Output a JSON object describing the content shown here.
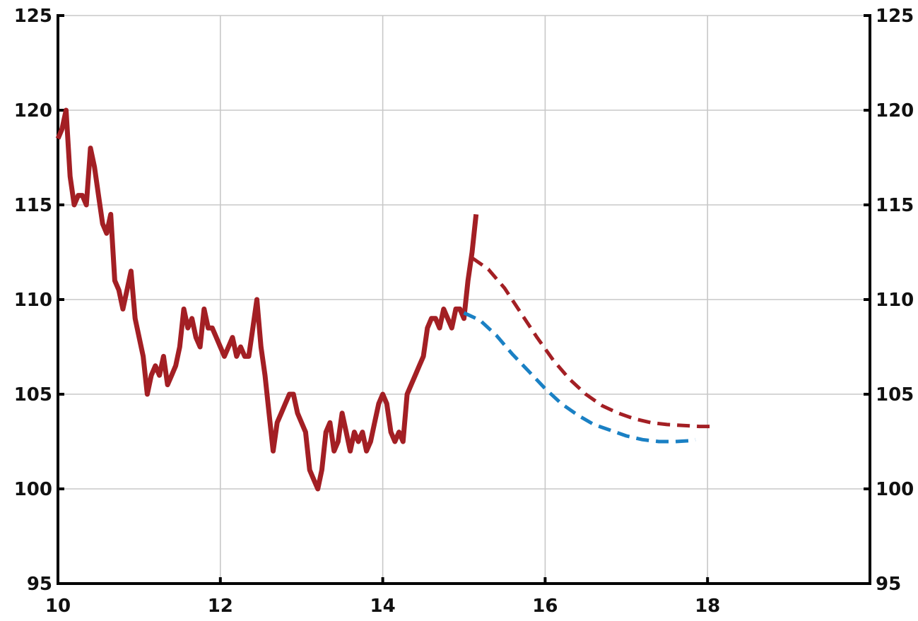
{
  "chart_data": {
    "type": "line",
    "title": "",
    "xlabel": "",
    "ylabel": "",
    "xlim": [
      10,
      20
    ],
    "ylim": [
      95,
      125
    ],
    "x_ticks": [
      10,
      12,
      14,
      16,
      18
    ],
    "y_ticks": [
      95,
      100,
      105,
      110,
      115,
      120,
      125
    ],
    "x_tick_labels": [
      "10",
      "12",
      "14",
      "16",
      "18"
    ],
    "y_tick_labels": [
      "95",
      "100",
      "105",
      "110",
      "115",
      "120",
      "125"
    ],
    "y_axis_right": true,
    "grid": true,
    "legend": "none",
    "series": [
      {
        "color": "#a31f24",
        "style": "solid",
        "x": [
          10.0,
          10.05,
          10.1,
          10.15,
          10.2,
          10.25,
          10.3,
          10.35,
          10.4,
          10.45,
          10.5,
          10.55,
          10.6,
          10.65,
          10.7,
          10.75,
          10.8,
          10.85,
          10.9,
          10.95,
          11.0,
          11.05,
          11.1,
          11.15,
          11.2,
          11.25,
          11.3,
          11.35,
          11.4,
          11.45,
          11.5,
          11.55,
          11.6,
          11.65,
          11.7,
          11.75,
          11.8,
          11.85,
          11.9,
          11.95,
          12.0,
          12.05,
          12.1,
          12.15,
          12.2,
          12.25,
          12.3,
          12.35,
          12.4,
          12.45,
          12.5,
          12.55,
          12.6,
          12.65,
          12.7,
          12.75,
          12.8,
          12.85,
          12.9,
          12.95,
          13.0,
          13.05,
          13.1,
          13.15,
          13.2,
          13.25,
          13.3,
          13.35,
          13.4,
          13.45,
          13.5,
          13.55,
          13.6,
          13.65,
          13.7,
          13.75,
          13.8,
          13.85,
          13.9,
          13.95,
          14.0,
          14.05,
          14.1,
          14.15,
          14.2,
          14.25,
          14.3,
          14.35,
          14.4,
          14.45,
          14.5,
          14.55,
          14.6,
          14.65,
          14.7,
          14.75,
          14.8,
          14.85,
          14.9,
          14.95,
          15.0,
          15.05,
          15.1,
          15.15
        ],
        "y": [
          118.5,
          119.0,
          120.0,
          116.5,
          115.0,
          115.5,
          115.5,
          115.0,
          118.0,
          117.0,
          115.5,
          114.0,
          113.5,
          114.5,
          111.0,
          110.5,
          109.5,
          110.5,
          111.5,
          109.0,
          108.0,
          107.0,
          105.0,
          106.0,
          106.5,
          106.0,
          107.0,
          105.5,
          106.0,
          106.5,
          107.5,
          109.5,
          108.5,
          109.0,
          108.0,
          107.5,
          109.5,
          108.5,
          108.5,
          108.0,
          107.5,
          107.0,
          107.5,
          108.0,
          107.0,
          107.5,
          107.0,
          107.0,
          108.5,
          110.0,
          107.5,
          106.0,
          104.0,
          102.0,
          103.5,
          104.0,
          104.5,
          105.0,
          105.0,
          104.0,
          103.5,
          103.0,
          101.0,
          100.5,
          100.0,
          101.0,
          103.0,
          103.5,
          102.0,
          102.5,
          104.0,
          103.0,
          102.0,
          103.0,
          102.5,
          103.0,
          102.0,
          102.5,
          103.5,
          104.5,
          105.0,
          104.5,
          103.0,
          102.5,
          103.0,
          102.5,
          105.0,
          105.5,
          106.0,
          106.5,
          107.0,
          108.5,
          109.0,
          109.0,
          108.5,
          109.5,
          109.0,
          108.5,
          109.5,
          109.5,
          109.0,
          111.0,
          112.5,
          114.5
        ]
      },
      {
        "color": "#a31f24",
        "style": "dashed",
        "x": [
          15.1,
          15.3,
          15.5,
          15.7,
          15.9,
          16.1,
          16.3,
          16.5,
          16.7,
          16.9,
          17.1,
          17.3,
          17.5,
          17.7,
          17.9,
          18.1
        ],
        "y": [
          112.2,
          111.6,
          110.6,
          109.3,
          108.0,
          106.8,
          105.8,
          105.0,
          104.4,
          104.0,
          103.7,
          103.5,
          103.4,
          103.35,
          103.3,
          103.3
        ]
      },
      {
        "color": "#1a80c4",
        "style": "dashed",
        "x": [
          15.0,
          15.2,
          15.4,
          15.6,
          15.8,
          16.0,
          16.2,
          16.4,
          16.6,
          16.8,
          17.0,
          17.2,
          17.4,
          17.6,
          17.8,
          17.85
        ],
        "y": [
          109.3,
          108.9,
          108.1,
          107.1,
          106.2,
          105.3,
          104.5,
          103.9,
          103.4,
          103.1,
          102.8,
          102.6,
          102.5,
          102.5,
          102.55,
          102.6
        ]
      }
    ]
  }
}
